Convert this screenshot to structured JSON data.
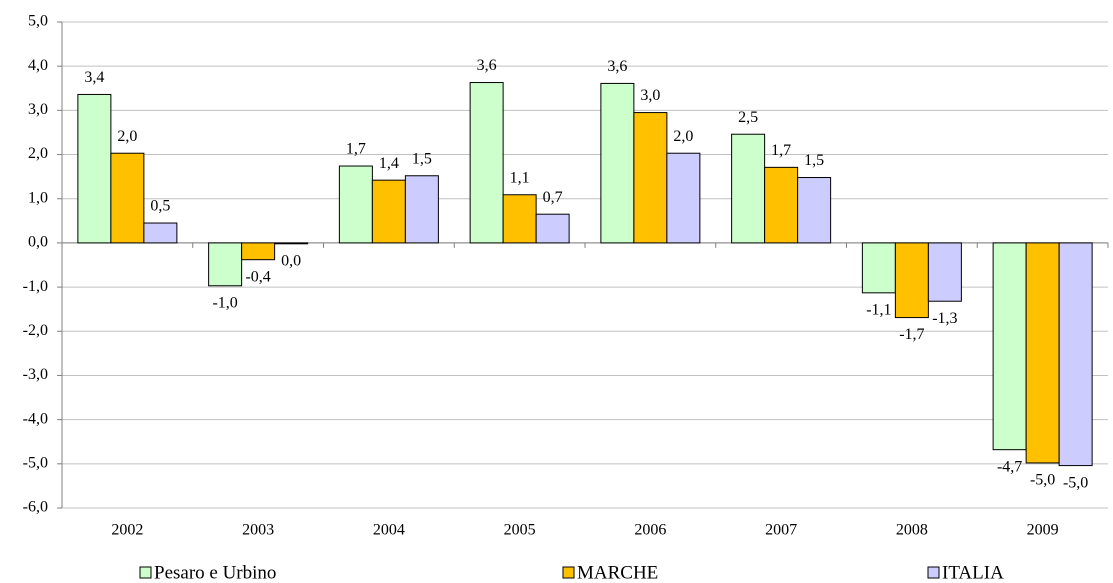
{
  "chart_data": {
    "type": "bar",
    "categories": [
      "2002",
      "2003",
      "2004",
      "2005",
      "2006",
      "2007",
      "2008",
      "2009"
    ],
    "series": [
      {
        "name": "Pesaro e Urbino",
        "color": "#ccffcc",
        "values": [
          3.36,
          -0.97,
          1.74,
          3.63,
          3.61,
          2.46,
          -1.13,
          -4.68
        ],
        "value_labels": [
          "3,4",
          "-1,0",
          "1,7",
          "3,6",
          "3,6",
          "2,5",
          "-1,1",
          "-4,7"
        ]
      },
      {
        "name": "MARCHE",
        "color": "#ffc000",
        "values": [
          2.03,
          -0.38,
          1.42,
          1.09,
          2.95,
          1.71,
          -1.69,
          -4.98
        ],
        "value_labels": [
          "2,0",
          "-0,4",
          "1,4",
          "1,1",
          "3,0",
          "1,7",
          "-1,7",
          "-5,0"
        ]
      },
      {
        "name": "ITALIA",
        "color": "#ccccff",
        "values": [
          0.45,
          -0.02,
          1.52,
          0.65,
          2.03,
          1.48,
          -1.32,
          -5.04
        ],
        "value_labels": [
          "0,5",
          "0,0",
          "1,5",
          "0,7",
          "2,0",
          "1,5",
          "-1,3",
          "-5,0"
        ]
      }
    ],
    "ylim": [
      -6,
      5
    ],
    "yticks": [
      {
        "value": 5,
        "label": "5,0"
      },
      {
        "value": 4,
        "label": "4,0"
      },
      {
        "value": 3,
        "label": "3,0"
      },
      {
        "value": 2,
        "label": "2,0"
      },
      {
        "value": 1,
        "label": "1,0"
      },
      {
        "value": 0,
        "label": "0,0"
      },
      {
        "value": -1,
        "label": "-1,0"
      },
      {
        "value": -2,
        "label": "-2,0"
      },
      {
        "value": -3,
        "label": "-3,0"
      },
      {
        "value": -4,
        "label": "-4,0"
      },
      {
        "value": -5,
        "label": "-5,0"
      },
      {
        "value": -6,
        "label": "-6,0"
      }
    ],
    "grid": true
  }
}
